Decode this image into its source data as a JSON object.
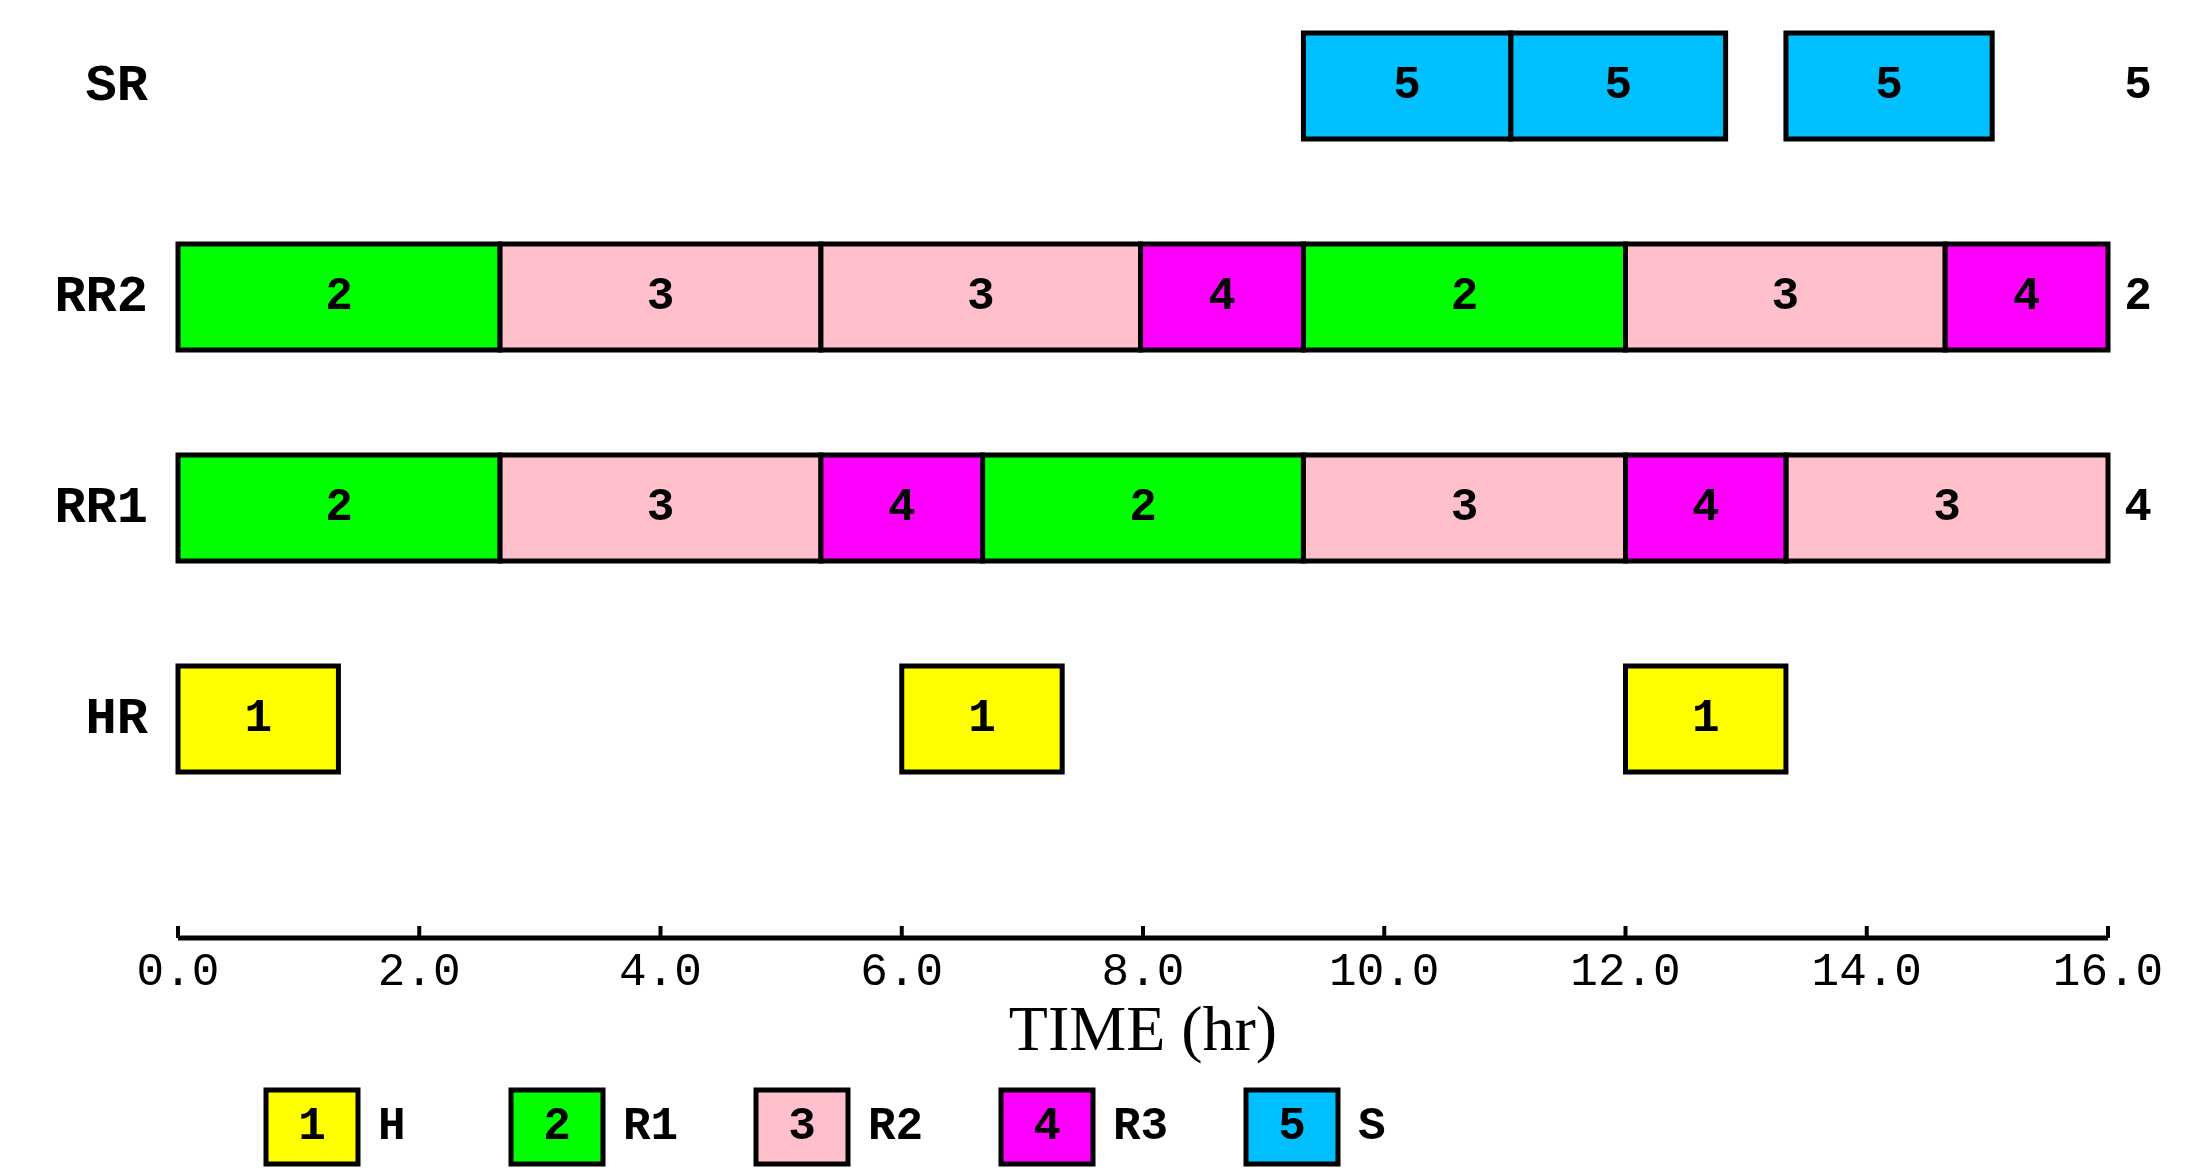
{
  "chart_data": {
    "type": "bar",
    "orientation": "horizontal",
    "xlabel": "TIME (hr)",
    "categories": [
      "SR",
      "RR2",
      "RR1",
      "HR"
    ],
    "xlim": [
      0,
      16
    ],
    "xticks": [
      {
        "value": 0,
        "label": "0.0"
      },
      {
        "value": 2,
        "label": "2.0"
      },
      {
        "value": 4,
        "label": "4.0"
      },
      {
        "value": 6,
        "label": "6.0"
      },
      {
        "value": 8,
        "label": "8.0"
      },
      {
        "value": 10,
        "label": "10.0"
      },
      {
        "value": 12,
        "label": "12.0"
      },
      {
        "value": 14,
        "label": "14.0"
      },
      {
        "value": 16,
        "label": "16.0"
      }
    ],
    "grid": false,
    "legend": "bottom",
    "series": [
      {
        "name": "H",
        "color": "#ffff00",
        "values": [
          null,
          null,
          null,
          1.33
        ],
        "base": [
          null,
          null,
          null,
          0
        ]
      },
      {
        "color": "#ffff00",
        "values": [
          null,
          null,
          null,
          1.33
        ],
        "base": [
          null,
          null,
          null,
          6.0
        ]
      },
      {
        "color": "#ffff00",
        "values": [
          null,
          null,
          null,
          1.33
        ],
        "base": [
          null,
          null,
          null,
          12.0
        ]
      },
      {
        "name": "R1",
        "color": "#00ff00",
        "values": [
          null,
          2.67,
          2.67,
          null
        ],
        "base": [
          null,
          0,
          0,
          null
        ]
      },
      {
        "color": "#00ff00",
        "values": [
          null,
          2.67,
          2.66,
          null
        ],
        "base": [
          null,
          9.33,
          6.67,
          null
        ]
      },
      {
        "name": "R2",
        "color": "#ffc0cb",
        "values": [
          null,
          2.66,
          2.66,
          null
        ],
        "base": [
          null,
          2.67,
          2.67,
          null
        ]
      },
      {
        "color": "#ffc0cb",
        "values": [
          null,
          2.65,
          2.67,
          null
        ],
        "base": [
          null,
          5.33,
          9.33,
          null
        ]
      },
      {
        "color": "#ffc0cb",
        "values": [
          null,
          2.65,
          2.67,
          null
        ],
        "base": [
          null,
          12.0,
          13.33,
          null
        ]
      },
      {
        "name": "R3",
        "color": "#ff00ff",
        "values": [
          null,
          1.35,
          1.34,
          null
        ],
        "base": [
          null,
          7.98,
          5.33,
          null
        ]
      },
      {
        "color": "#ff00ff",
        "values": [
          null,
          1.35,
          1.33,
          null
        ],
        "base": [
          null,
          14.65,
          12.0,
          null
        ]
      },
      {
        "name": "S",
        "color": "#00bfff",
        "values": [
          1.72,
          null,
          null,
          null
        ],
        "base": [
          9.33,
          null,
          null,
          null
        ]
      },
      {
        "color": "#00bfff",
        "values": [
          1.78,
          null,
          null,
          null
        ],
        "base": [
          11.05,
          null,
          null,
          null
        ]
      },
      {
        "color": "#00bfff",
        "values": [
          1.71,
          null,
          null,
          null
        ],
        "base": [
          13.33,
          null,
          null,
          null
        ]
      }
    ],
    "annotations": [
      "1",
      "2",
      "3",
      "4",
      "5",
      "5",
      "2",
      "4"
    ]
  }
}
